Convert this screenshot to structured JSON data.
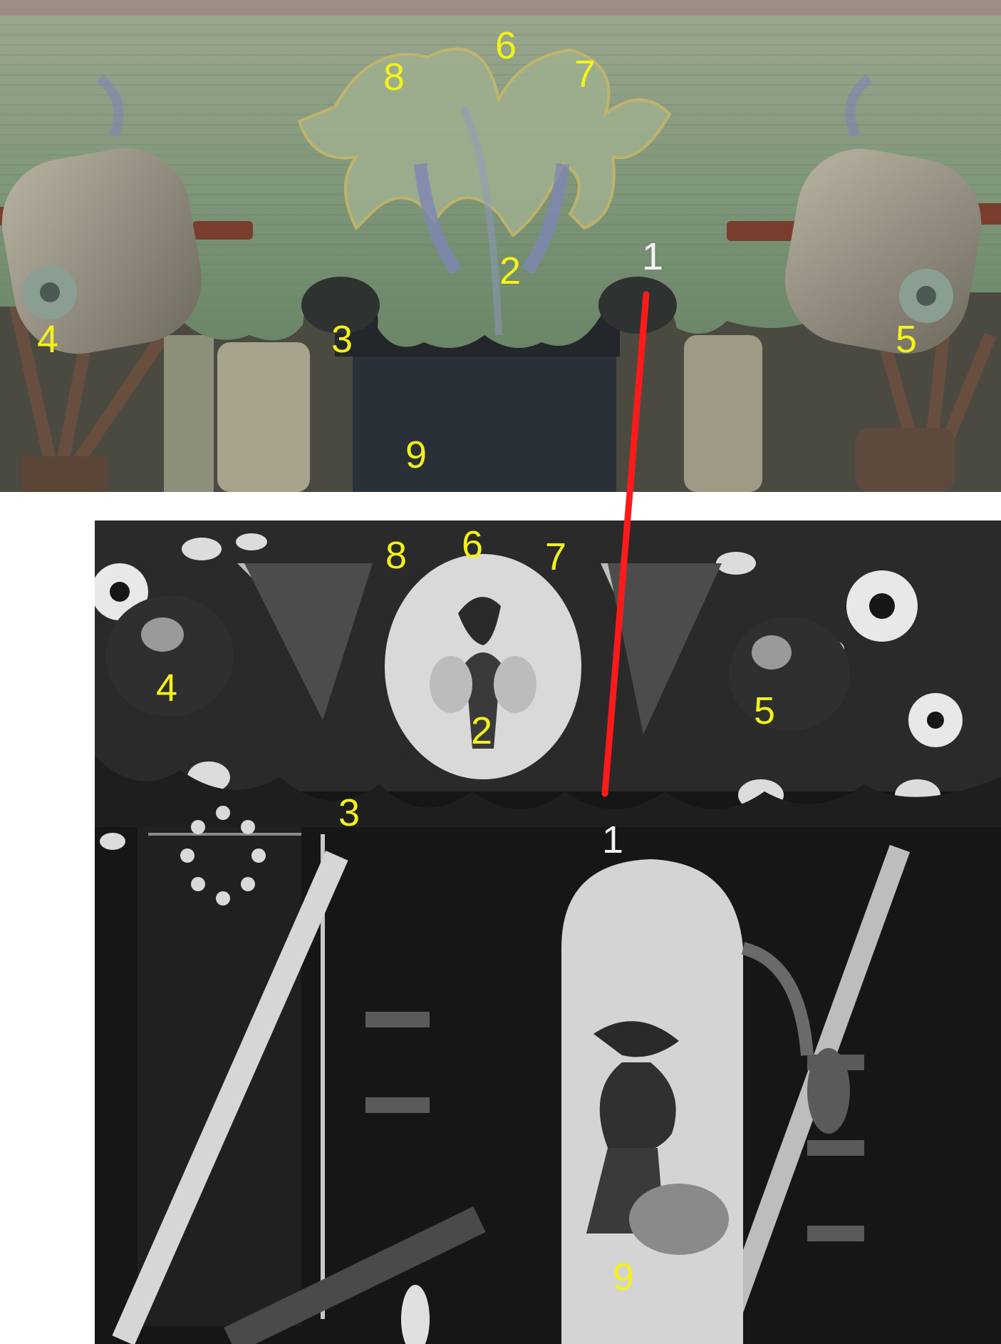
{
  "top_photo": {
    "description_icon": "painted-wooden-beam-photo",
    "colors": {
      "wood": "#8c9a7d",
      "paint_green": "#6f9a6a",
      "paint_blue": "#7d87b8",
      "shadow": "#3b3f3a"
    },
    "markers": [
      {
        "label": "6",
        "color": "yellow"
      },
      {
        "label": "8",
        "color": "yellow"
      },
      {
        "label": "7",
        "color": "yellow"
      },
      {
        "label": "2",
        "color": "yellow"
      },
      {
        "label": "1",
        "color": "white"
      },
      {
        "label": "4",
        "color": "yellow"
      },
      {
        "label": "3",
        "color": "yellow"
      },
      {
        "label": "5",
        "color": "yellow"
      },
      {
        "label": "9",
        "color": "yellow"
      }
    ]
  },
  "bottom_photo": {
    "description_icon": "archival-black-and-white-photo",
    "colors": {
      "dark": "#151515",
      "light": "#e6e6e6",
      "mid": "#7a7a7a"
    },
    "markers": [
      {
        "label": "8",
        "color": "yellow"
      },
      {
        "label": "6",
        "color": "yellow"
      },
      {
        "label": "7",
        "color": "yellow"
      },
      {
        "label": "4",
        "color": "yellow"
      },
      {
        "label": "5",
        "color": "yellow"
      },
      {
        "label": "2",
        "color": "yellow"
      },
      {
        "label": "3",
        "color": "yellow"
      },
      {
        "label": "1",
        "color": "white"
      },
      {
        "label": "9",
        "color": "yellow"
      }
    ]
  },
  "connector": {
    "color": "#ff1a1a",
    "icon": "red-connector-line"
  }
}
